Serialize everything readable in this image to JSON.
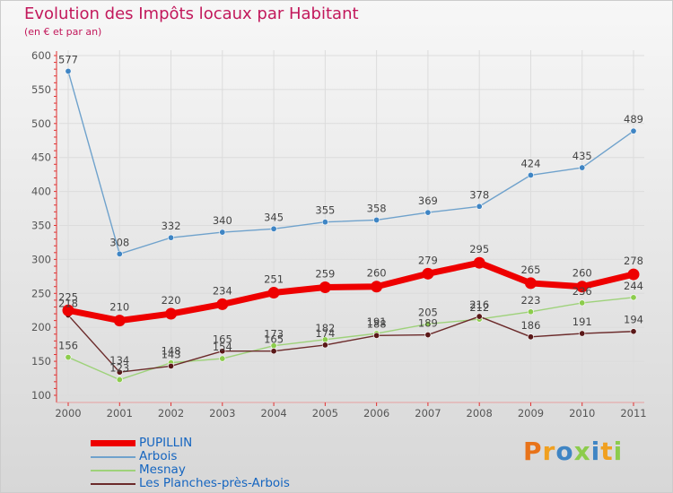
{
  "header": {
    "title": "Evolution des Impôts locaux par Habitant",
    "subtitle": "(en € et par an)"
  },
  "chart_data": {
    "type": "line",
    "title": "Evolution des Impôts locaux par Habitant",
    "subtitle": "(en € et par an)",
    "xlabel": "",
    "ylabel": "",
    "categories": [
      "2000",
      "2001",
      "2002",
      "2003",
      "2004",
      "2005",
      "2006",
      "2007",
      "2008",
      "2009",
      "2010",
      "2011"
    ],
    "ylim": [
      100,
      600
    ],
    "yticks": [
      "100",
      "150",
      "200",
      "250",
      "300",
      "350",
      "400",
      "450",
      "500",
      "550",
      "600"
    ],
    "series": [
      {
        "name": "Arbois",
        "color": "#6fa2cc",
        "marker": "#3f85c4",
        "values": [
          577,
          308,
          332,
          340,
          345,
          355,
          358,
          369,
          378,
          424,
          435,
          489
        ]
      },
      {
        "name": "Mesnay",
        "color": "#9ed27a",
        "marker": "#8ccc4c",
        "values": [
          156,
          123,
          148,
          154,
          173,
          182,
          191,
          205,
          212,
          223,
          236,
          244
        ]
      },
      {
        "name": "Les Planches-près-Arbois",
        "color": "#6b2a2a",
        "marker": "#5a1818",
        "values": [
          218,
          134,
          143,
          165,
          165,
          174,
          188,
          189,
          216,
          186,
          191,
          194
        ]
      },
      {
        "name": "PUPILLIN",
        "color": "#ee0000",
        "marker": "#ee0000",
        "values": [
          225,
          210,
          220,
          234,
          251,
          259,
          260,
          279,
          295,
          265,
          260,
          278
        ]
      }
    ],
    "legend": [
      "PUPILLIN",
      "Arbois",
      "Mesnay",
      "Les Planches-près-Arbois"
    ]
  },
  "logo": {
    "text": "Proxiti",
    "colors": [
      "#e8731a",
      "#f0a020",
      "#3f85c4",
      "#8ccc4c",
      "#3f85c4",
      "#f0a020",
      "#8ccc4c"
    ]
  }
}
